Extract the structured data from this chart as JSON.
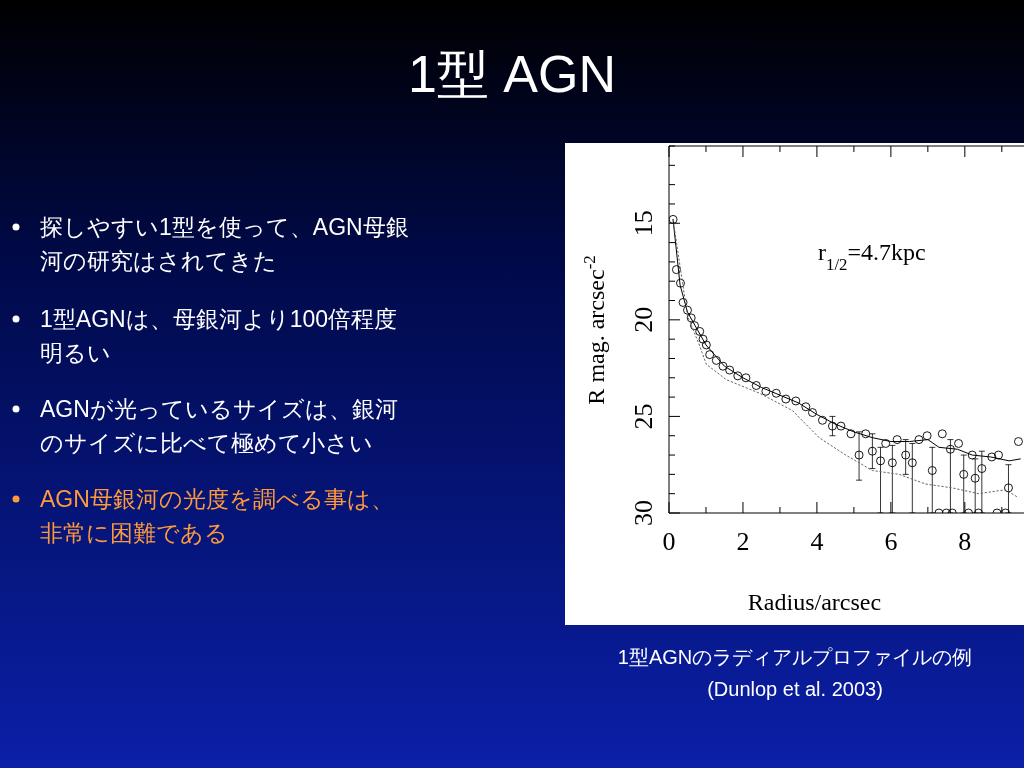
{
  "chart_data": {
    "type": "scatter",
    "title": "1型 AGN",
    "xlabel": "Radius/arcsec",
    "ylabel": "R mag. arcsec$^{-2}$",
    "xlim": [
      0,
      9.6
    ],
    "ylim": [
      30,
      11
    ],
    "xticks": [
      0,
      {
        "value": 1,
        "label": null
      },
      2,
      {
        "value": 3,
        "label": null
      },
      4,
      {
        "value": 5,
        "label": null
      },
      6,
      {
        "value": 7,
        "label": null
      },
      8,
      {
        "value": 9,
        "label": null
      }
    ],
    "yticks": [
      {
        "value": 11,
        "label": null
      },
      {
        "value": 12,
        "label": null
      },
      {
        "value": 13,
        "label": null
      },
      {
        "value": 14,
        "label": null
      },
      15,
      {
        "value": 16,
        "label": null
      },
      {
        "value": 17,
        "label": null
      },
      {
        "value": 18,
        "label": null
      },
      {
        "value": 19,
        "label": null
      },
      20,
      {
        "value": 21,
        "label": null
      },
      {
        "value": 22,
        "label": null
      },
      {
        "value": 23,
        "label": null
      },
      {
        "value": 24,
        "label": null
      },
      25,
      {
        "value": 26,
        "label": null
      },
      {
        "value": 27,
        "label": null
      },
      {
        "value": 28,
        "label": null
      },
      {
        "value": 29,
        "label": null
      },
      30
    ],
    "annotations": [
      "探しやすい1型を使って、AGN母銀河の研究はされてきた",
      "1型AGNは、母銀河より100倍程度明るい",
      "AGNが光っているサイズは、銀河のサイズに比べて極めて小さい",
      "AGN母銀河の光度を調べる事は、非常に困難である",
      "r$_{1/2}$=4.7kpc",
      "1型AGNのラディアルプロファイルの例",
      "(Dunlop et al. 2003)"
    ],
    "series": [
      {
        "type": "scatter",
        "marker": "circle",
        "color": "#000000",
        "x": [
          0.11,
          0.2,
          0.31,
          0.38,
          0.5,
          0.6,
          0.69,
          0.83,
          0.92,
          1.01,
          1.1,
          1.28,
          1.46,
          1.64,
          1.86,
          2.08,
          2.36,
          2.62,
          2.9,
          3.16,
          3.43,
          3.7,
          3.88,
          4.15,
          4.42,
          4.65,
          4.92,
          5.14,
          5.32,
          5.5,
          5.72,
          5.86,
          6.04,
          6.17,
          6.4,
          6.58,
          6.76,
          6.98,
          7.12,
          7.39,
          7.61,
          7.83,
          7.97,
          8.2,
          8.28,
          8.46,
          8.73,
          8.91,
          9.18,
          9.45,
          7.3,
          7.5,
          7.66,
          8.1,
          8.37,
          8.87,
          9.1
        ],
        "values": [
          14.8,
          17.4,
          18.1,
          19.1,
          19.5,
          19.9,
          20.3,
          20.6,
          21.0,
          21.3,
          21.8,
          22.1,
          22.4,
          22.6,
          22.9,
          23.0,
          23.4,
          23.7,
          23.8,
          24.1,
          24.2,
          24.5,
          24.8,
          25.2,
          25.5,
          25.5,
          25.9,
          27.0,
          25.9,
          26.8,
          27.3,
          26.4,
          27.4,
          26.2,
          27.0,
          27.4,
          26.2,
          26.0,
          27.8,
          25.9,
          26.7,
          26.4,
          28.0,
          27.0,
          28.2,
          27.7,
          27.1,
          27.0,
          28.7,
          26.3,
          30,
          30,
          30,
          30,
          30,
          30,
          30
        ],
        "errors": [
          null,
          null,
          null,
          null,
          null,
          null,
          null,
          null,
          null,
          null,
          null,
          null,
          null,
          null,
          null,
          null,
          null,
          null,
          null,
          null,
          null,
          null,
          null,
          null,
          [
            25.0,
            26.0
          ],
          null,
          null,
          [
            25.8,
            28.3
          ],
          null,
          [
            25.9,
            27.7
          ],
          [
            26.6,
            30
          ],
          null,
          [
            26.5,
            30
          ],
          null,
          [
            26.2,
            28
          ],
          [
            26.4,
            30
          ],
          null,
          null,
          [
            26.6,
            30
          ],
          null,
          [
            26.2,
            30
          ],
          null,
          [
            27,
            30
          ],
          null,
          [
            27.2,
            30
          ],
          [
            26.8,
            30
          ],
          null,
          null,
          [
            27.5,
            30
          ],
          null,
          null,
          null,
          null,
          null,
          null,
          null,
          null
        ]
      },
      {
        "type": "line",
        "line_style": "solid",
        "color": "#000000",
        "x": [
          0.11,
          0.3,
          0.5,
          1.0,
          1.5,
          2,
          2.5,
          3,
          3.5,
          4,
          4.5,
          5,
          5.5,
          6,
          6.5,
          7,
          7.3,
          7.8,
          8.2,
          8.7,
          9.2,
          9.5
        ],
        "values": [
          14.8,
          18.2,
          19.6,
          21.3,
          22.4,
          23,
          23.5,
          23.9,
          24.3,
          24.9,
          25.4,
          25.8,
          26.1,
          26.3,
          26.3,
          26.2,
          26.6,
          26.7,
          27.0,
          27.1,
          27.3,
          27.2
        ]
      },
      {
        "type": "line",
        "line_style": "dotted",
        "color": "#666666",
        "x": [
          0.11,
          0.5,
          0.8,
          1.01,
          1.55,
          2.45,
          3.34,
          4.06,
          4.78,
          5.5,
          6.22,
          6.94,
          7.66,
          8.37,
          9.09,
          9.45
        ],
        "values": [
          14.8,
          19.8,
          21.2,
          22.3,
          23.1,
          23.8,
          24.7,
          26.1,
          27.0,
          27.8,
          28.0,
          28.5,
          28.7,
          29.0,
          28.8,
          29.2
        ]
      }
    ]
  }
}
